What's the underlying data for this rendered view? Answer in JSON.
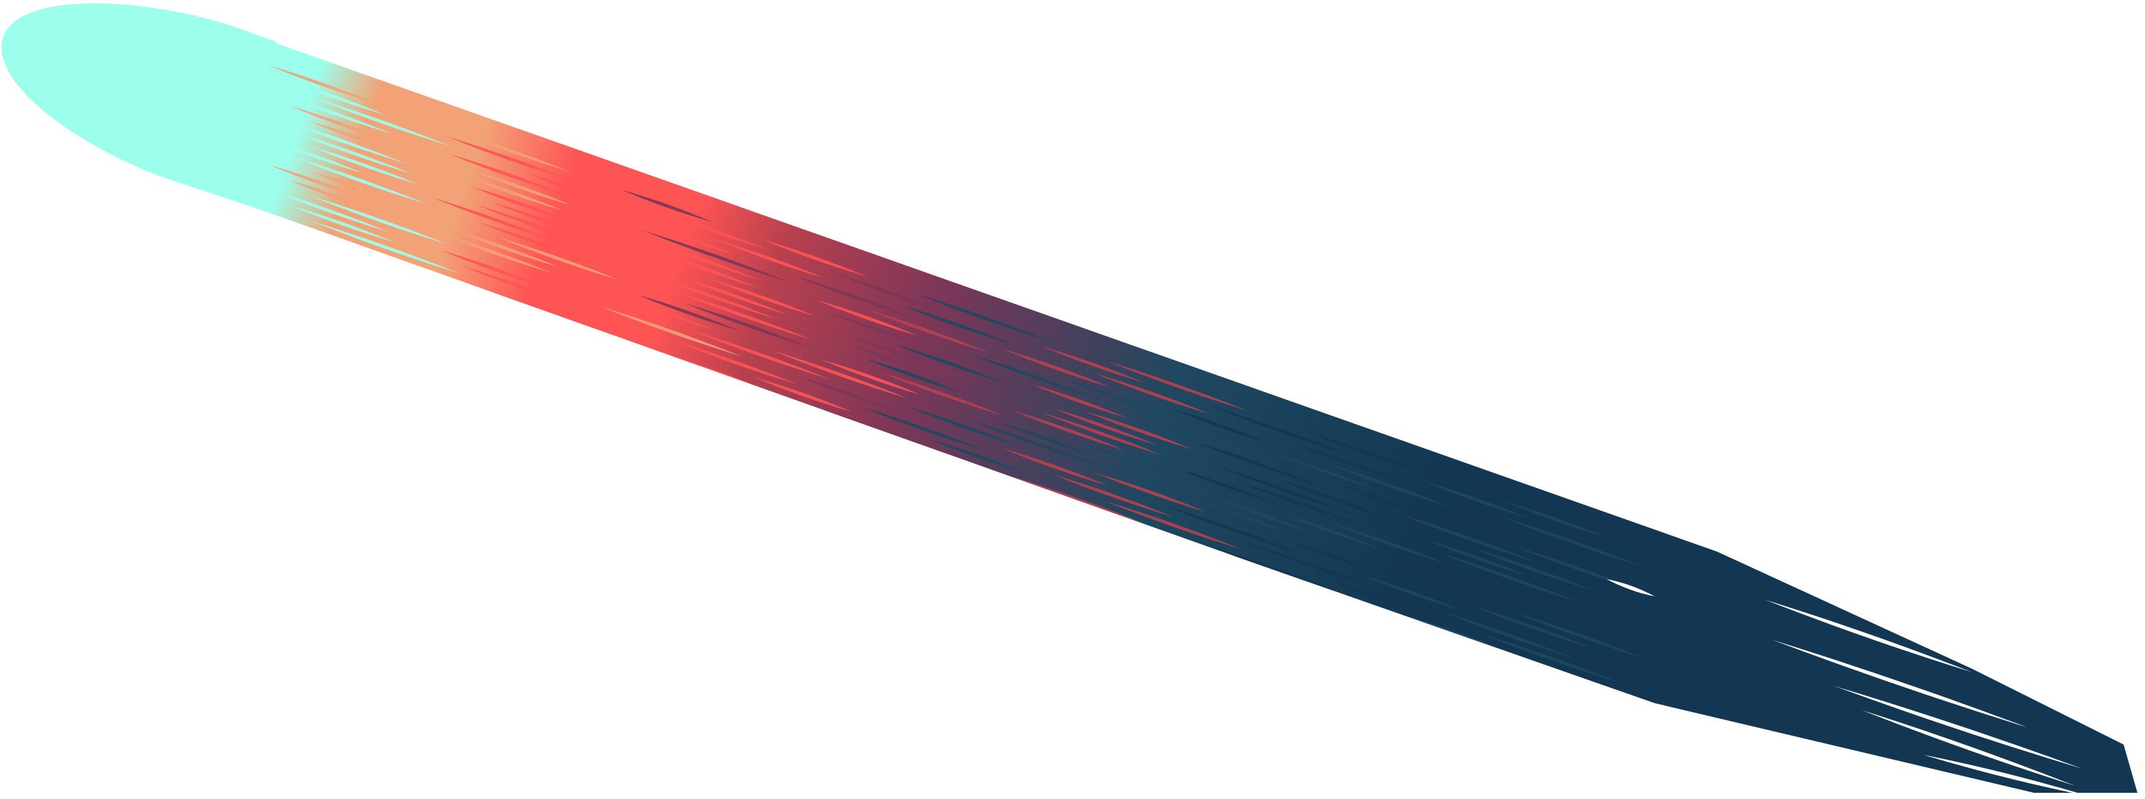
{
  "artwork": {
    "subject": "diagonal-paint-streak",
    "palette": {
      "mint": "#9BFFEC",
      "peach": "#F2A276",
      "coral": "#FF5454",
      "rose": "#B8404E",
      "plum": "#7D3658",
      "slate": "#1E4860",
      "navy": "#133752",
      "background": "#FFFFFF"
    }
  }
}
